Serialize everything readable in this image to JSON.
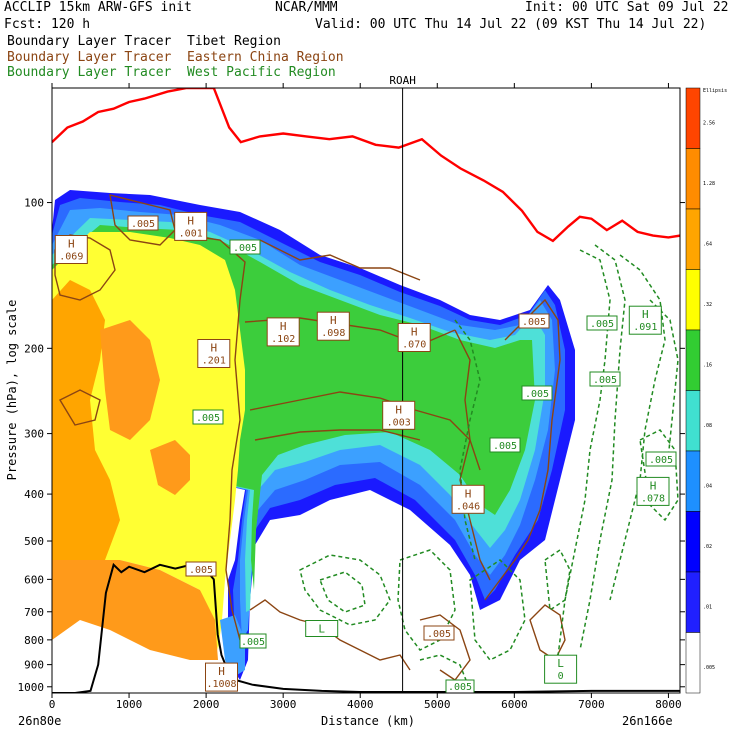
{
  "header": {
    "model": "ACCLIP 15km ARW-GFS init",
    "center": "NCAR/MMM",
    "init": "Init: 00 UTC Sat 09 Jul 22",
    "fcst": "Fcst:  120 h",
    "valid": "Valid: 00 UTC Thu 14 Jul 22 (09 KST Thu 14 Jul 22)"
  },
  "legend": [
    {
      "prefix": "Boundary Layer Tracer",
      "region": "Tibet Region",
      "color": "#000000"
    },
    {
      "prefix": "Boundary Layer Tracer",
      "region": "Eastern China Region",
      "color": "#8b4513"
    },
    {
      "prefix": "Boundary Layer Tracer",
      "region": "West Pacific Region",
      "color": "#228b22"
    }
  ],
  "colors": {
    "tropopause": "#ff0000",
    "terrain": "#000000",
    "tibet": "#000000",
    "eastern_china": "#8b4513",
    "west_pacific": "#228b22"
  },
  "chart_data": {
    "type": "heatmap",
    "title": "",
    "xlabel": "Distance (km)",
    "ylabel": "Pressure (hPa), log scale",
    "xlim": [
      0,
      8150
    ],
    "ylim": [
      1030,
      58
    ],
    "y_log_scale": true,
    "x_ticks": [
      0,
      1000,
      2000,
      3000,
      4000,
      5000,
      6000,
      7000,
      8000
    ],
    "y_ticks": [
      100,
      200,
      300,
      400,
      500,
      600,
      700,
      800,
      900,
      1000
    ],
    "x_endpoints": {
      "left": "26n80e",
      "right": "26n166e"
    },
    "marker": {
      "label": "ROAH",
      "x": 4550
    },
    "colorbar": {
      "top_label": "Ellipsis",
      "levels": [
        2.56,
        1.28,
        0.64,
        0.32,
        0.16,
        0.08,
        0.04,
        0.02,
        0.01,
        0.005
      ],
      "level_labels": [
        "2.56",
        "1.28",
        ".64",
        ".32",
        ".16",
        ".08",
        ".04",
        ".02",
        ".01",
        ".005"
      ],
      "colors": [
        "#ff4500",
        "#ff8c00",
        "#ffa500",
        "#ffff00",
        "#32cd32",
        "#40e0d0",
        "#1e90ff",
        "#0000ff",
        "#2020ff",
        "#ffffff"
      ]
    },
    "tropopause_pressure": [
      [
        0,
        75
      ],
      [
        200,
        70
      ],
      [
        400,
        68
      ],
      [
        600,
        65
      ],
      [
        800,
        64
      ],
      [
        1000,
        62
      ],
      [
        1200,
        61
      ],
      [
        1500,
        59
      ],
      [
        1750,
        58
      ],
      [
        2100,
        58
      ],
      [
        2300,
        70
      ],
      [
        2450,
        75
      ],
      [
        2700,
        73
      ],
      [
        3000,
        72
      ],
      [
        3300,
        73
      ],
      [
        3600,
        74
      ],
      [
        3900,
        73
      ],
      [
        4200,
        76
      ],
      [
        4500,
        77
      ],
      [
        4800,
        74
      ],
      [
        5050,
        80
      ],
      [
        5300,
        85
      ],
      [
        5600,
        90
      ],
      [
        5850,
        95
      ],
      [
        6100,
        104
      ],
      [
        6300,
        115
      ],
      [
        6500,
        120
      ],
      [
        6700,
        112
      ],
      [
        6850,
        107
      ],
      [
        7000,
        108
      ],
      [
        7200,
        114
      ],
      [
        7400,
        109
      ],
      [
        7600,
        115
      ],
      [
        7800,
        117
      ],
      [
        8000,
        118
      ],
      [
        8150,
        117
      ]
    ],
    "terrain_pressure": [
      [
        0,
        1030
      ],
      [
        300,
        1030
      ],
      [
        500,
        1020
      ],
      [
        600,
        900
      ],
      [
        700,
        640
      ],
      [
        800,
        560
      ],
      [
        900,
        580
      ],
      [
        1000,
        565
      ],
      [
        1200,
        580
      ],
      [
        1400,
        560
      ],
      [
        1600,
        570
      ],
      [
        1800,
        560
      ],
      [
        2000,
        575
      ],
      [
        2100,
        600
      ],
      [
        2150,
        780
      ],
      [
        2200,
        860
      ],
      [
        2300,
        940
      ],
      [
        2400,
        970
      ],
      [
        2600,
        990
      ],
      [
        3000,
        1010
      ],
      [
        3500,
        1020
      ],
      [
        4000,
        1025
      ],
      [
        5000,
        1025
      ],
      [
        6000,
        1025
      ],
      [
        7000,
        1020
      ],
      [
        8150,
        1020
      ]
    ],
    "maxima_labels": [
      {
        "type": "H",
        "value": ".069",
        "x": 250,
        "p": 125
      },
      {
        "type": "H",
        "value": ".001",
        "x": 1800,
        "p": 112
      },
      {
        "type": "H",
        "value": ".201",
        "x": 2100,
        "p": 205
      },
      {
        "type": "H",
        "value": ".102",
        "x": 3000,
        "p": 185
      },
      {
        "type": "H",
        "value": ".098",
        "x": 3650,
        "p": 180
      },
      {
        "type": "H",
        "value": ".070",
        "x": 4700,
        "p": 190
      },
      {
        "type": "H",
        "value": ".003",
        "x": 4500,
        "p": 275
      },
      {
        "type": "H",
        "value": ".046",
        "x": 5400,
        "p": 410
      },
      {
        "type": "H",
        "value": ".1008",
        "x": 2200,
        "p": 955
      },
      {
        "type": "H",
        "value": ".091",
        "x": 7700,
        "p": 175
      },
      {
        "type": "H",
        "value": ".078",
        "x": 7800,
        "p": 395
      },
      {
        "type": "L",
        "value": "",
        "x": 3500,
        "p": 780
      },
      {
        "type": "L",
        "value": "0",
        "x": 6600,
        "p": 920
      }
    ],
    "contour_value_labels": [
      ".005",
      ".005",
      ".005",
      ".005",
      ".005",
      ".005",
      ".005",
      ".005",
      ".005",
      ".005",
      ".005",
      ".005",
      ".005"
    ]
  }
}
